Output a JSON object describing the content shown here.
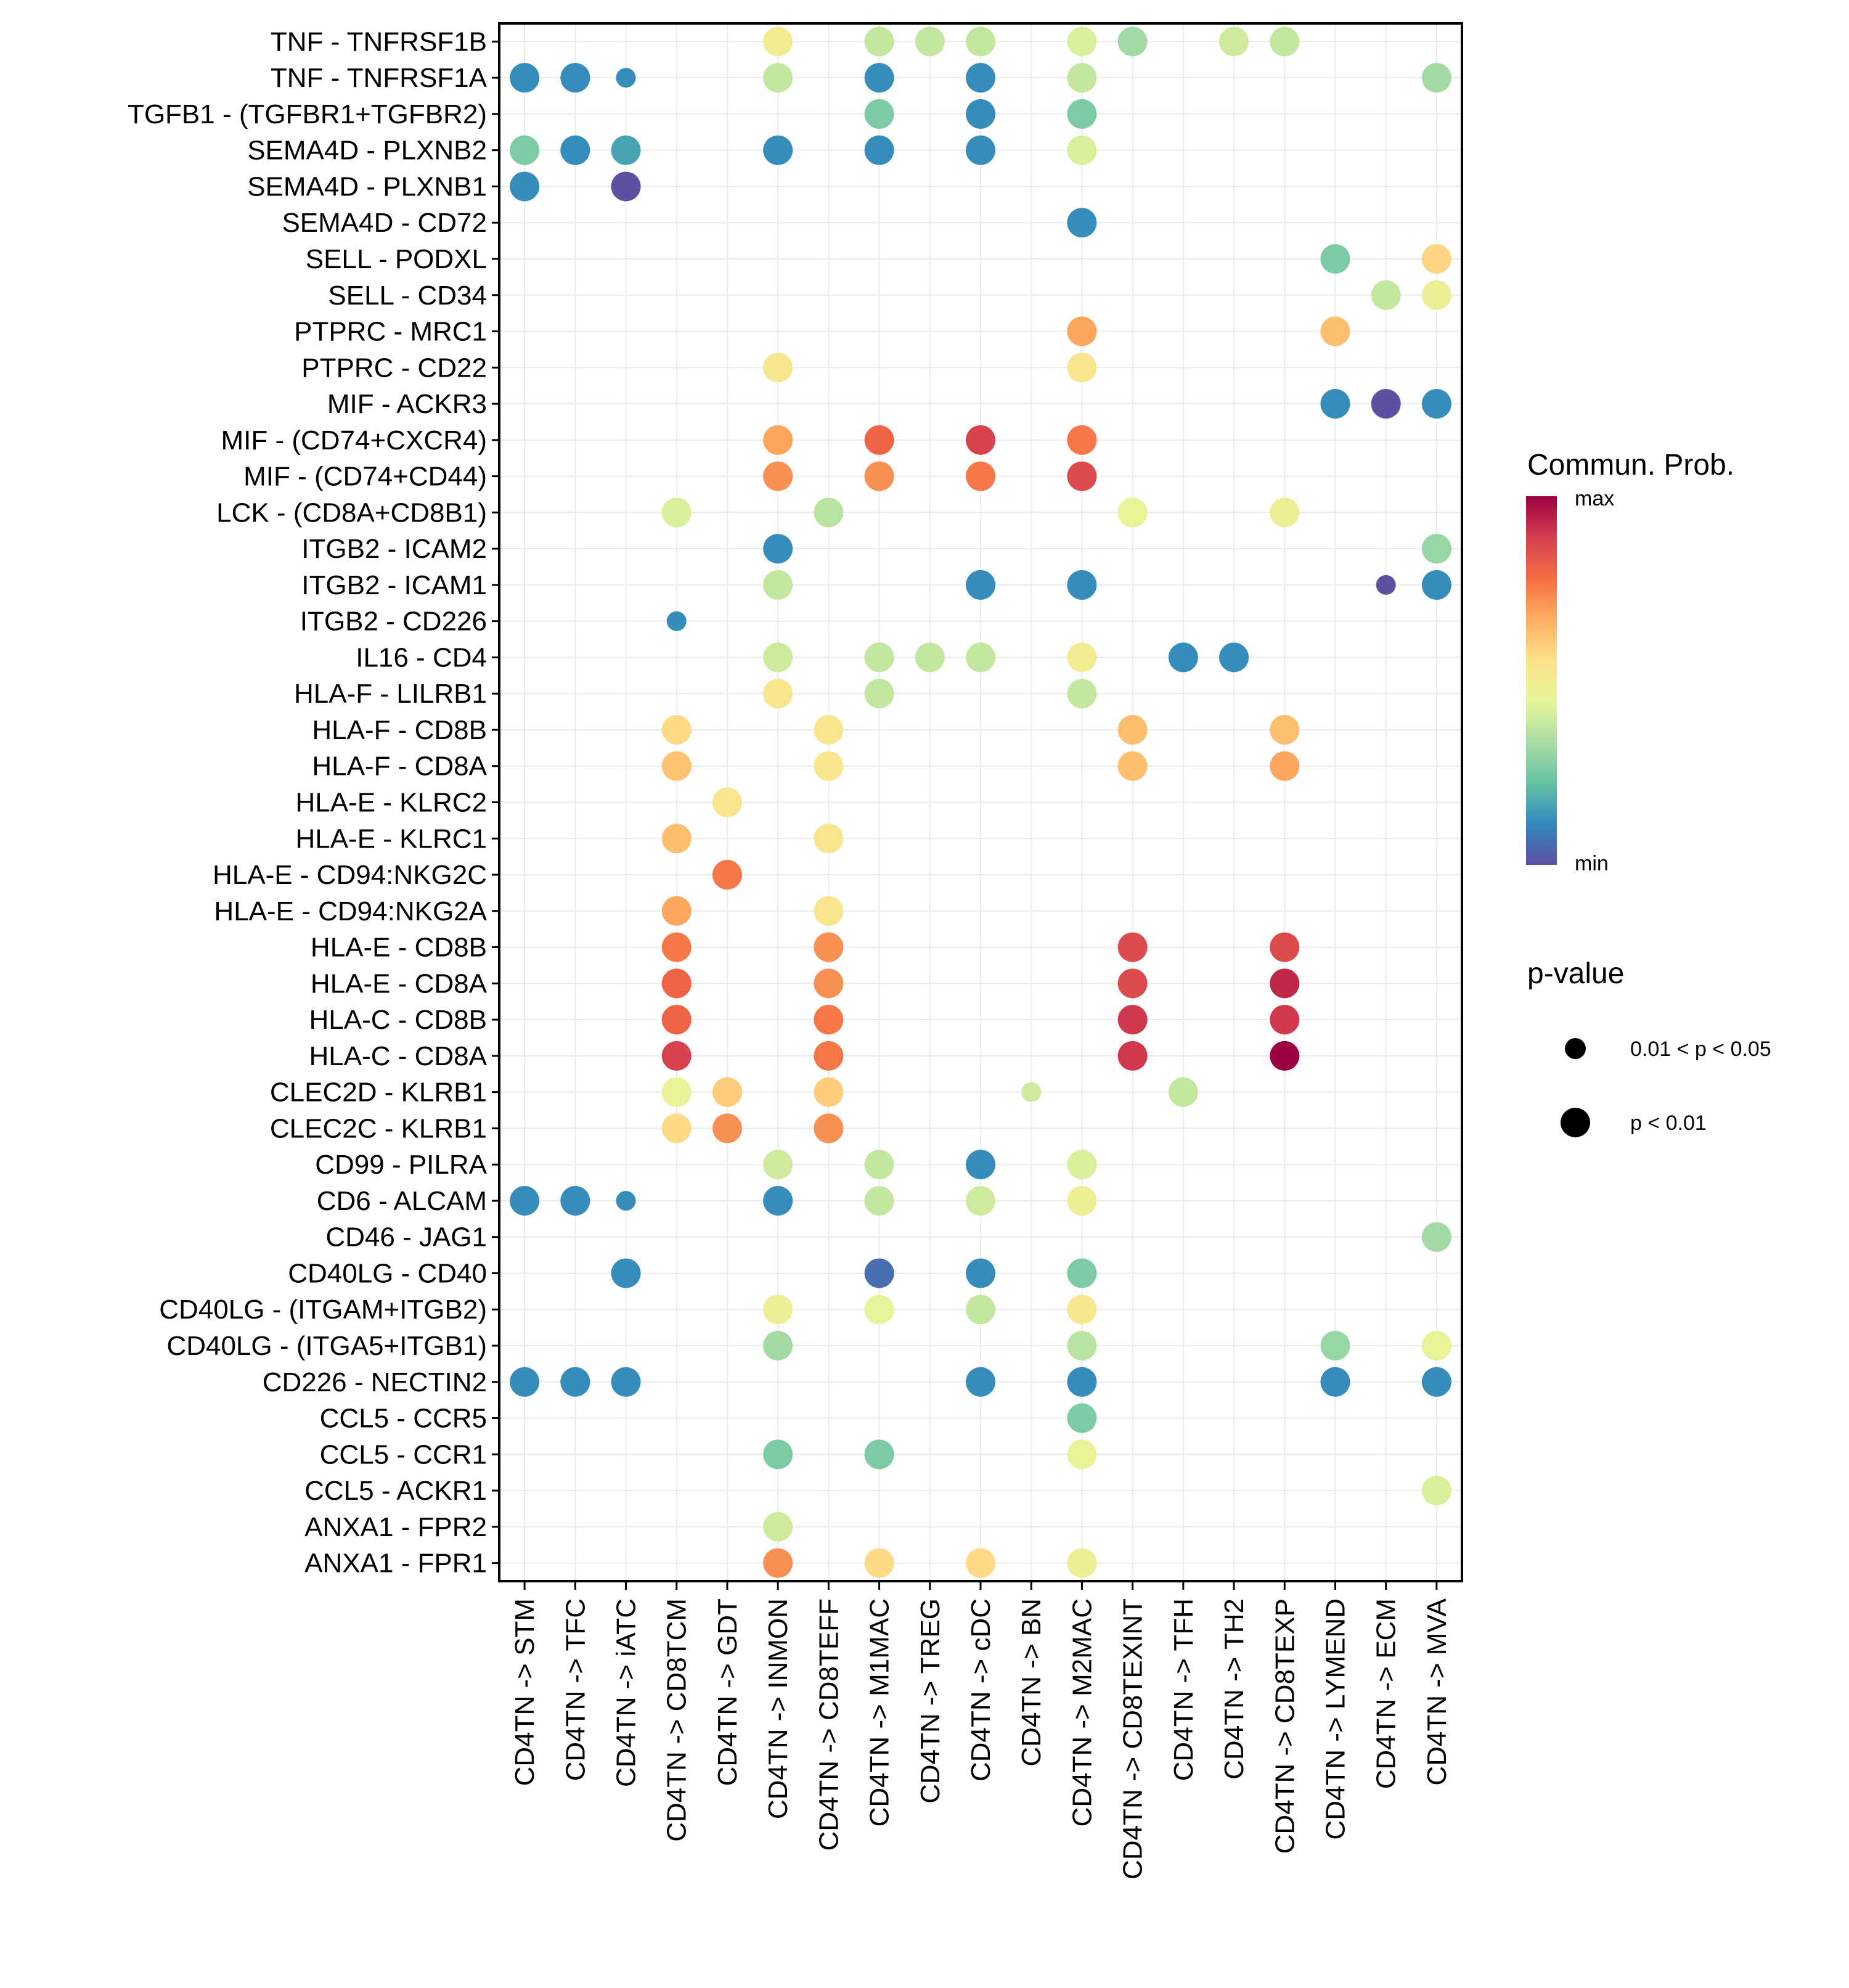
{
  "chart_data": {
    "type": "scatter",
    "subtype": "dot-matrix",
    "title": "",
    "xlabel": "",
    "ylabel": "",
    "grid": true,
    "legend_position": "right",
    "x_categories": [
      "CD4TN -> STM",
      "CD4TN -> TFC",
      "CD4TN -> iATC",
      "CD4TN -> CD8TCM",
      "CD4TN -> GDT",
      "CD4TN -> INMON",
      "CD4TN -> CD8TEFF",
      "CD4TN -> M1MAC",
      "CD4TN -> TREG",
      "CD4TN -> cDC",
      "CD4TN -> BN",
      "CD4TN -> M2MAC",
      "CD4TN -> CD8TEXINT",
      "CD4TN -> TFH",
      "CD4TN -> TH2",
      "CD4TN -> CD8TEXP",
      "CD4TN -> LYMEND",
      "CD4TN -> ECM",
      "CD4TN -> MVA"
    ],
    "y_categories": [
      "TNF - TNFRSF1B",
      "TNF - TNFRSF1A",
      "TGFB1 - (TGFBR1+TGFBR2)",
      "SEMA4D - PLXNB2",
      "SEMA4D - PLXNB1",
      "SEMA4D - CD72",
      "SELL - PODXL",
      "SELL - CD34",
      "PTPRC - MRC1",
      "PTPRC - CD22",
      "MIF - ACKR3",
      "MIF - (CD74+CXCR4)",
      "MIF - (CD74+CD44)",
      "LCK - (CD8A+CD8B1)",
      "ITGB2 - ICAM2",
      "ITGB2 - ICAM1",
      "ITGB2 - CD226",
      "IL16 - CD4",
      "HLA-F - LILRB1",
      "HLA-F - CD8B",
      "HLA-F - CD8A",
      "HLA-E - KLRC2",
      "HLA-E - KLRC1",
      "HLA-E - CD94:NKG2C",
      "HLA-E - CD94:NKG2A",
      "HLA-E - CD8B",
      "HLA-E - CD8A",
      "HLA-C - CD8B",
      "HLA-C - CD8A",
      "CLEC2D - KLRB1",
      "CLEC2C - KLRB1",
      "CD99 - PILRA",
      "CD6 - ALCAM",
      "CD46 - JAG1",
      "CD40LG - CD40",
      "CD40LG - (ITGAM+ITGB2)",
      "CD40LG - (ITGA5+ITGB1)",
      "CD226 - NECTIN2",
      "CCL5 - CCR5",
      "CCL5 - CCR1",
      "CCL5 - ACKR1",
      "ANXA1 - FPR2",
      "ANXA1 - FPR1"
    ],
    "color_legend": {
      "title": "Commun. Prob.",
      "max_label": "max",
      "min_label": "min",
      "palette": [
        "#5E4FA2",
        "#3288BD",
        "#66C2A5",
        "#ABDDA4",
        "#E6F598",
        "#FEE08B",
        "#FDAE61",
        "#F46D43",
        "#D53E4F",
        "#9E0142"
      ]
    },
    "size_legend": {
      "title": "p-value",
      "entries": [
        {
          "label": "0.01 < p < 0.05",
          "category": "small"
        },
        {
          "label": "p < 0.01",
          "category": "large"
        }
      ]
    },
    "points_note": "each point: [row_index, column_index, relative_commun_prob (0=min,1=max), pvalue_category]",
    "points": [
      [
        0,
        5,
        0.5,
        "large"
      ],
      [
        0,
        7,
        0.38,
        "large"
      ],
      [
        0,
        8,
        0.38,
        "large"
      ],
      [
        0,
        9,
        0.38,
        "large"
      ],
      [
        0,
        11,
        0.42,
        "large"
      ],
      [
        0,
        12,
        0.32,
        "large"
      ],
      [
        0,
        14,
        0.4,
        "large"
      ],
      [
        0,
        15,
        0.38,
        "large"
      ],
      [
        1,
        0,
        0.12,
        "large"
      ],
      [
        1,
        1,
        0.12,
        "large"
      ],
      [
        1,
        2,
        0.12,
        "small"
      ],
      [
        1,
        5,
        0.38,
        "large"
      ],
      [
        1,
        7,
        0.12,
        "large"
      ],
      [
        1,
        9,
        0.12,
        "large"
      ],
      [
        1,
        11,
        0.38,
        "large"
      ],
      [
        1,
        18,
        0.32,
        "large"
      ],
      [
        2,
        7,
        0.26,
        "large"
      ],
      [
        2,
        9,
        0.12,
        "large"
      ],
      [
        2,
        11,
        0.26,
        "large"
      ],
      [
        3,
        0,
        0.26,
        "large"
      ],
      [
        3,
        1,
        0.12,
        "large"
      ],
      [
        3,
        2,
        0.16,
        "large"
      ],
      [
        3,
        5,
        0.12,
        "large"
      ],
      [
        3,
        7,
        0.12,
        "large"
      ],
      [
        3,
        9,
        0.12,
        "large"
      ],
      [
        3,
        11,
        0.42,
        "large"
      ],
      [
        4,
        0,
        0.12,
        "large"
      ],
      [
        4,
        2,
        0.0,
        "large"
      ],
      [
        5,
        11,
        0.12,
        "large"
      ],
      [
        6,
        16,
        0.26,
        "large"
      ],
      [
        6,
        18,
        0.58,
        "large"
      ],
      [
        7,
        17,
        0.38,
        "large"
      ],
      [
        7,
        18,
        0.48,
        "large"
      ],
      [
        8,
        11,
        0.68,
        "large"
      ],
      [
        8,
        16,
        0.63,
        "large"
      ],
      [
        9,
        5,
        0.52,
        "large"
      ],
      [
        9,
        11,
        0.53,
        "large"
      ],
      [
        10,
        16,
        0.12,
        "large"
      ],
      [
        10,
        17,
        0.0,
        "large"
      ],
      [
        10,
        18,
        0.12,
        "large"
      ],
      [
        11,
        5,
        0.68,
        "large"
      ],
      [
        11,
        7,
        0.8,
        "large"
      ],
      [
        11,
        9,
        0.88,
        "large"
      ],
      [
        11,
        11,
        0.76,
        "large"
      ],
      [
        12,
        5,
        0.72,
        "large"
      ],
      [
        12,
        7,
        0.72,
        "large"
      ],
      [
        12,
        9,
        0.76,
        "large"
      ],
      [
        12,
        11,
        0.86,
        "large"
      ],
      [
        13,
        3,
        0.42,
        "large"
      ],
      [
        13,
        6,
        0.36,
        "large"
      ],
      [
        13,
        12,
        0.46,
        "large"
      ],
      [
        13,
        15,
        0.48,
        "large"
      ],
      [
        14,
        5,
        0.12,
        "large"
      ],
      [
        14,
        18,
        0.3,
        "large"
      ],
      [
        15,
        5,
        0.38,
        "large"
      ],
      [
        15,
        9,
        0.12,
        "large"
      ],
      [
        15,
        11,
        0.12,
        "large"
      ],
      [
        15,
        17,
        0.0,
        "small"
      ],
      [
        15,
        18,
        0.12,
        "large"
      ],
      [
        16,
        3,
        0.12,
        "small"
      ],
      [
        17,
        5,
        0.4,
        "large"
      ],
      [
        17,
        7,
        0.38,
        "large"
      ],
      [
        17,
        8,
        0.38,
        "large"
      ],
      [
        17,
        9,
        0.38,
        "large"
      ],
      [
        17,
        11,
        0.5,
        "large"
      ],
      [
        17,
        13,
        0.12,
        "large"
      ],
      [
        17,
        14,
        0.12,
        "large"
      ],
      [
        18,
        5,
        0.53,
        "large"
      ],
      [
        18,
        7,
        0.38,
        "large"
      ],
      [
        18,
        11,
        0.38,
        "large"
      ],
      [
        19,
        3,
        0.57,
        "large"
      ],
      [
        19,
        6,
        0.53,
        "large"
      ],
      [
        19,
        12,
        0.63,
        "large"
      ],
      [
        19,
        15,
        0.63,
        "large"
      ],
      [
        20,
        3,
        0.62,
        "large"
      ],
      [
        20,
        6,
        0.53,
        "large"
      ],
      [
        20,
        12,
        0.63,
        "large"
      ],
      [
        20,
        15,
        0.68,
        "large"
      ],
      [
        21,
        4,
        0.53,
        "large"
      ],
      [
        22,
        3,
        0.63,
        "large"
      ],
      [
        22,
        6,
        0.53,
        "large"
      ],
      [
        23,
        4,
        0.76,
        "large"
      ],
      [
        24,
        3,
        0.68,
        "large"
      ],
      [
        24,
        6,
        0.53,
        "large"
      ],
      [
        25,
        3,
        0.76,
        "large"
      ],
      [
        25,
        6,
        0.72,
        "large"
      ],
      [
        25,
        12,
        0.86,
        "large"
      ],
      [
        25,
        15,
        0.86,
        "large"
      ],
      [
        26,
        3,
        0.8,
        "large"
      ],
      [
        26,
        6,
        0.72,
        "large"
      ],
      [
        26,
        12,
        0.86,
        "large"
      ],
      [
        26,
        15,
        0.93,
        "large"
      ],
      [
        27,
        3,
        0.8,
        "large"
      ],
      [
        27,
        6,
        0.76,
        "large"
      ],
      [
        27,
        12,
        0.9,
        "large"
      ],
      [
        27,
        15,
        0.9,
        "large"
      ],
      [
        28,
        3,
        0.88,
        "large"
      ],
      [
        28,
        6,
        0.76,
        "large"
      ],
      [
        28,
        12,
        0.9,
        "large"
      ],
      [
        28,
        15,
        1.0,
        "large"
      ],
      [
        29,
        3,
        0.46,
        "large"
      ],
      [
        29,
        4,
        0.6,
        "large"
      ],
      [
        29,
        6,
        0.6,
        "large"
      ],
      [
        29,
        10,
        0.4,
        "small"
      ],
      [
        29,
        13,
        0.38,
        "large"
      ],
      [
        30,
        3,
        0.57,
        "large"
      ],
      [
        30,
        4,
        0.72,
        "large"
      ],
      [
        30,
        6,
        0.72,
        "large"
      ],
      [
        31,
        5,
        0.4,
        "large"
      ],
      [
        31,
        7,
        0.38,
        "large"
      ],
      [
        31,
        9,
        0.12,
        "large"
      ],
      [
        31,
        11,
        0.42,
        "large"
      ],
      [
        32,
        0,
        0.12,
        "large"
      ],
      [
        32,
        1,
        0.12,
        "large"
      ],
      [
        32,
        2,
        0.12,
        "small"
      ],
      [
        32,
        5,
        0.12,
        "large"
      ],
      [
        32,
        7,
        0.38,
        "large"
      ],
      [
        32,
        9,
        0.4,
        "large"
      ],
      [
        32,
        11,
        0.48,
        "large"
      ],
      [
        33,
        18,
        0.32,
        "large"
      ],
      [
        34,
        2,
        0.12,
        "large"
      ],
      [
        34,
        7,
        0.06,
        "large"
      ],
      [
        34,
        9,
        0.12,
        "large"
      ],
      [
        34,
        11,
        0.26,
        "large"
      ],
      [
        35,
        5,
        0.48,
        "large"
      ],
      [
        35,
        7,
        0.44,
        "large"
      ],
      [
        35,
        9,
        0.38,
        "large"
      ],
      [
        35,
        11,
        0.52,
        "large"
      ],
      [
        36,
        5,
        0.32,
        "large"
      ],
      [
        36,
        11,
        0.36,
        "large"
      ],
      [
        36,
        16,
        0.3,
        "large"
      ],
      [
        36,
        18,
        0.46,
        "large"
      ],
      [
        37,
        0,
        0.12,
        "large"
      ],
      [
        37,
        1,
        0.12,
        "large"
      ],
      [
        37,
        2,
        0.12,
        "large"
      ],
      [
        37,
        9,
        0.12,
        "large"
      ],
      [
        37,
        11,
        0.12,
        "large"
      ],
      [
        37,
        16,
        0.12,
        "large"
      ],
      [
        37,
        18,
        0.12,
        "large"
      ],
      [
        38,
        11,
        0.26,
        "large"
      ],
      [
        39,
        5,
        0.26,
        "large"
      ],
      [
        39,
        7,
        0.26,
        "large"
      ],
      [
        39,
        11,
        0.46,
        "large"
      ],
      [
        40,
        18,
        0.42,
        "large"
      ],
      [
        41,
        5,
        0.4,
        "large"
      ],
      [
        42,
        5,
        0.72,
        "large"
      ],
      [
        42,
        7,
        0.57,
        "large"
      ],
      [
        42,
        9,
        0.57,
        "large"
      ],
      [
        42,
        11,
        0.48,
        "large"
      ]
    ]
  }
}
